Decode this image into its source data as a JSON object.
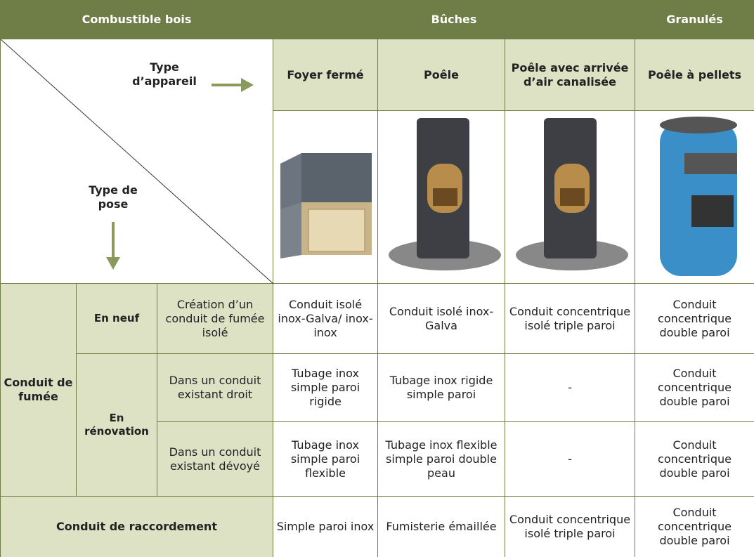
{
  "header": {
    "fuel": "Combustible bois",
    "logs": "Bûches",
    "pellets": "Granulés"
  },
  "diagonal": {
    "appliance_type": "Type d’appareil",
    "installation_type": "Type de pose"
  },
  "appliances": [
    "Foyer fermé",
    "Poêle",
    "Poêle avec arrivée d’air canalisée",
    "Poêle à pellets"
  ],
  "flue": {
    "label": "Conduit de fumée",
    "new": {
      "label": "En neuf",
      "rows": [
        {
          "label": "Création d’un conduit de fumée isolé",
          "cells": [
            "Conduit isolé inox-Galva/ inox-inox",
            "Conduit isolé inox-Galva",
            "Conduit concentrique isolé triple paroi",
            "Conduit concentrique double paroi"
          ]
        }
      ]
    },
    "renovation": {
      "label": "En rénovation",
      "rows": [
        {
          "label": "Dans un conduit existant droit",
          "cells": [
            "Tubage inox simple paroi rigide",
            "Tubage inox rigide simple paroi",
            "-",
            "Conduit concentrique double paroi"
          ]
        },
        {
          "label": "Dans un conduit existant dévoyé",
          "cells": [
            "Tubage inox simple paroi flexible",
            "Tubage inox flexible simple paroi double peau",
            "-",
            "Conduit concentrique double paroi"
          ]
        }
      ]
    }
  },
  "connection": {
    "label": "Conduit de raccordement",
    "cells": [
      "Simple paroi inox",
      "Fumisterie émaillée",
      "Conduit concentrique isolé triple paroi",
      "Conduit concentrique double paroi"
    ]
  }
}
